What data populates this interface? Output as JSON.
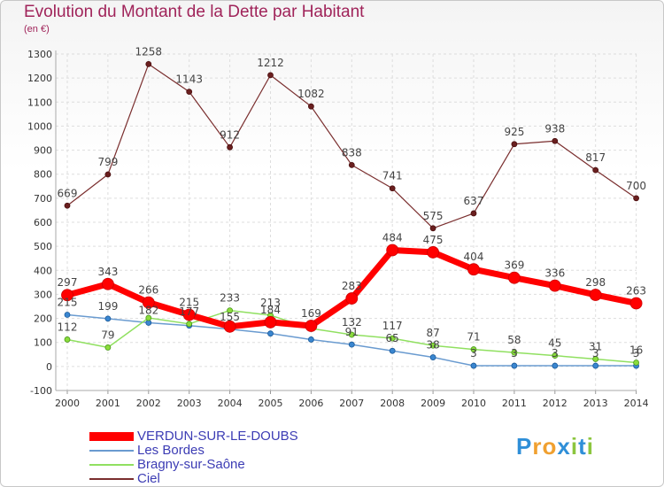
{
  "chart_data": {
    "type": "line",
    "title": "Evolution du Montant de la Dette par Habitant",
    "subtitle": "(en €)",
    "categories": [
      "2000",
      "2001",
      "2002",
      "2003",
      "2004",
      "2005",
      "2006",
      "2007",
      "2008",
      "2009",
      "2010",
      "2011",
      "2012",
      "2013",
      "2014"
    ],
    "ylim": [
      -100,
      1300
    ],
    "yticks": [
      -100,
      0,
      100,
      200,
      300,
      400,
      500,
      600,
      700,
      800,
      900,
      1000,
      1100,
      1200,
      1300
    ],
    "grid": true,
    "legend_position": "bottom-left",
    "series": [
      {
        "name": "VERDUN-SUR-LE-DOUBS",
        "color": "#ff0000",
        "values": [
          297,
          343,
          266,
          215,
          166,
          184,
          169,
          283,
          484,
          475,
          404,
          369,
          336,
          298,
          263
        ],
        "labels": [
          "297",
          "343",
          "266",
          "215",
          "",
          "184",
          "169",
          "283",
          "484",
          "475",
          "404",
          "369",
          "336",
          "298",
          "263"
        ]
      },
      {
        "name": "Les Bordes",
        "color": "#6a9bd0",
        "values": [
          215,
          199,
          182,
          170,
          155,
          137,
          112,
          91,
          65,
          38,
          3,
          3,
          3,
          3,
          3
        ],
        "labels": [
          "215",
          "199",
          "182",
          "",
          "155",
          "",
          "",
          "91",
          "65",
          "38",
          "3",
          "3",
          "3",
          "3",
          "3"
        ]
      },
      {
        "name": "Bragny-sur-Saône",
        "color": "#90e060",
        "values": [
          112,
          79,
          202,
          177,
          233,
          213,
          158,
          132,
          117,
          87,
          71,
          58,
          45,
          31,
          16
        ],
        "labels": [
          "112",
          "79",
          "",
          "177",
          "233",
          "213",
          "",
          "132",
          "117",
          "87",
          "71",
          "58",
          "45",
          "31",
          "16"
        ]
      },
      {
        "name": "Ciel",
        "color": "#7a2e2e",
        "values": [
          669,
          799,
          1258,
          1143,
          912,
          1212,
          1082,
          838,
          741,
          575,
          637,
          925,
          938,
          817,
          700
        ],
        "labels": [
          "669",
          "799",
          "1258",
          "1143",
          "912",
          "1212",
          "1082",
          "838",
          "741",
          "575",
          "637",
          "925",
          "938",
          "817",
          "700"
        ]
      }
    ]
  },
  "logo": {
    "letters": [
      "P",
      "r",
      "o",
      "x",
      "i",
      "t",
      "i"
    ],
    "colors": [
      "#2f8fd8",
      "#f0a030",
      "#f0a030",
      "#2f8fd8",
      "#8cc63f",
      "#2f8fd8",
      "#8cc63f"
    ]
  }
}
